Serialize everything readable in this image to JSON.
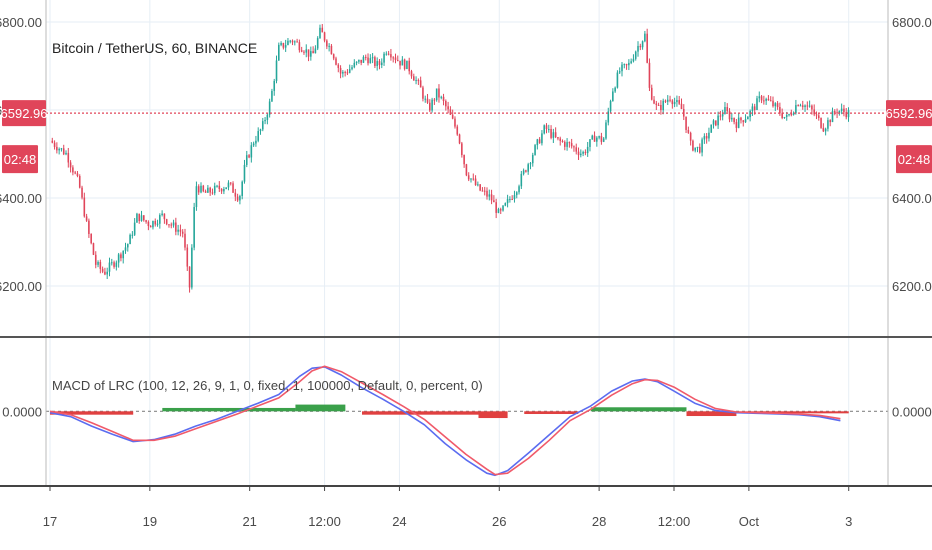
{
  "chart_data": [
    {
      "type": "candlestick",
      "title": "Bitcoin / TetherUS, 60, BINANCE",
      "ylim": [
        6100,
        6850
      ],
      "y_ticks": [
        "6800.00",
        "6600.00",
        "6400.00",
        "6200.00"
      ],
      "y_tick_values": [
        6800,
        6600,
        6400,
        6200
      ],
      "last_price": 6592.96,
      "last_price_label": "6592.96",
      "countdown": "02:48",
      "grid": true,
      "colors": {
        "up": "#26a69a",
        "down": "#e0455a",
        "price_line": "#e0455a",
        "grid": "#e6eef5"
      },
      "x_tick_labels": [
        "17",
        "19",
        "21",
        "12:00",
        "24",
        "26",
        "28",
        "12:00",
        "Oct",
        "3"
      ],
      "x_tick_positions": [
        0,
        48,
        96,
        132,
        168,
        216,
        264,
        300,
        336,
        384
      ],
      "x_range": [
        0,
        400
      ],
      "close_path": [
        [
          0,
          6530
        ],
        [
          8,
          6500
        ],
        [
          14,
          6430
        ],
        [
          18,
          6330
        ],
        [
          22,
          6250
        ],
        [
          26,
          6230
        ],
        [
          32,
          6260
        ],
        [
          38,
          6300
        ],
        [
          42,
          6360
        ],
        [
          48,
          6340
        ],
        [
          54,
          6360
        ],
        [
          58,
          6340
        ],
        [
          64,
          6320
        ],
        [
          67,
          6190
        ],
        [
          70,
          6430
        ],
        [
          74,
          6410
        ],
        [
          80,
          6420
        ],
        [
          86,
          6430
        ],
        [
          91,
          6400
        ],
        [
          94,
          6480
        ],
        [
          98,
          6530
        ],
        [
          102,
          6560
        ],
        [
          106,
          6620
        ],
        [
          110,
          6740
        ],
        [
          116,
          6760
        ],
        [
          122,
          6740
        ],
        [
          126,
          6720
        ],
        [
          130,
          6780
        ],
        [
          136,
          6730
        ],
        [
          140,
          6680
        ],
        [
          146,
          6700
        ],
        [
          152,
          6720
        ],
        [
          158,
          6700
        ],
        [
          162,
          6740
        ],
        [
          168,
          6710
        ],
        [
          172,
          6700
        ],
        [
          178,
          6650
        ],
        [
          182,
          6600
        ],
        [
          186,
          6640
        ],
        [
          190,
          6610
        ],
        [
          196,
          6550
        ],
        [
          200,
          6460
        ],
        [
          206,
          6420
        ],
        [
          212,
          6400
        ],
        [
          216,
          6360
        ],
        [
          220,
          6390
        ],
        [
          224,
          6420
        ],
        [
          228,
          6460
        ],
        [
          234,
          6520
        ],
        [
          238,
          6560
        ],
        [
          244,
          6530
        ],
        [
          250,
          6520
        ],
        [
          256,
          6500
        ],
        [
          262,
          6540
        ],
        [
          266,
          6530
        ],
        [
          270,
          6640
        ],
        [
          274,
          6690
        ],
        [
          278,
          6700
        ],
        [
          282,
          6740
        ],
        [
          286,
          6770
        ],
        [
          288,
          6650
        ],
        [
          292,
          6600
        ],
        [
          298,
          6630
        ],
        [
          304,
          6600
        ],
        [
          308,
          6520
        ],
        [
          312,
          6510
        ],
        [
          318,
          6560
        ],
        [
          324,
          6600
        ],
        [
          330,
          6570
        ],
        [
          336,
          6590
        ],
        [
          342,
          6630
        ],
        [
          348,
          6610
        ],
        [
          354,
          6580
        ],
        [
          360,
          6620
        ],
        [
          366,
          6600
        ],
        [
          372,
          6560
        ],
        [
          378,
          6600
        ],
        [
          384,
          6593
        ]
      ]
    },
    {
      "type": "line",
      "title": "MACD of LRC (100, 12, 26, 9, 1, 0, fixed, 1, 100000, Default, 0, percent, 0)",
      "y_ticks": [
        "0.0000"
      ],
      "y_tick_values": [
        0
      ],
      "ylim": [
        -1.05,
        1.0
      ],
      "colors": {
        "macd": "#5b6cf0",
        "signal": "#f05a6a",
        "hist_pos": "#3aa04a",
        "hist_neg": "#e04040",
        "zero": "#888888"
      },
      "series": [
        {
          "x": [
            0,
            10,
            20,
            30,
            40,
            50,
            60,
            70,
            80,
            90,
            100,
            110,
            120,
            126,
            132,
            140,
            150,
            160,
            170,
            180,
            190,
            200,
            210,
            214,
            220,
            230,
            240,
            250,
            260,
            270,
            280,
            286,
            292,
            300,
            310,
            320,
            330,
            340,
            350,
            360,
            370,
            380
          ],
          "values": [
            -0.02,
            -0.08,
            -0.22,
            -0.34,
            -0.45,
            -0.42,
            -0.34,
            -0.22,
            -0.12,
            0.0,
            0.12,
            0.25,
            0.52,
            0.64,
            0.66,
            0.54,
            0.35,
            0.18,
            0.0,
            -0.2,
            -0.48,
            -0.72,
            -0.92,
            -0.95,
            -0.88,
            -0.62,
            -0.35,
            -0.08,
            0.08,
            0.3,
            0.45,
            0.48,
            0.44,
            0.3,
            0.12,
            0.01,
            -0.02,
            -0.03,
            -0.04,
            -0.05,
            -0.08,
            -0.14
          ]
        },
        {
          "x": [
            0,
            10,
            20,
            30,
            40,
            50,
            60,
            70,
            80,
            90,
            100,
            110,
            120,
            126,
            132,
            140,
            150,
            160,
            170,
            180,
            190,
            200,
            210,
            214,
            220,
            230,
            240,
            250,
            260,
            270,
            280,
            286,
            292,
            300,
            310,
            320,
            330,
            340,
            350,
            360,
            370,
            380
          ],
          "values": [
            0.0,
            -0.05,
            -0.17,
            -0.3,
            -0.43,
            -0.43,
            -0.37,
            -0.26,
            -0.15,
            -0.04,
            0.08,
            0.2,
            0.44,
            0.6,
            0.67,
            0.59,
            0.42,
            0.25,
            0.07,
            -0.12,
            -0.38,
            -0.64,
            -0.86,
            -0.94,
            -0.92,
            -0.7,
            -0.43,
            -0.14,
            0.03,
            0.24,
            0.41,
            0.47,
            0.46,
            0.36,
            0.18,
            0.04,
            -0.01,
            -0.02,
            -0.03,
            -0.04,
            -0.06,
            -0.11
          ]
        }
      ],
      "histogram": [
        {
          "x": [
            0,
            40
          ],
          "value": -0.05
        },
        {
          "x": [
            54,
            118
          ],
          "value": 0.05
        },
        {
          "x": [
            118,
            142
          ],
          "value": 0.1
        },
        {
          "x": [
            150,
            206
          ],
          "value": -0.05
        },
        {
          "x": [
            206,
            220
          ],
          "value": -0.1
        },
        {
          "x": [
            228,
            254
          ],
          "value": -0.04
        },
        {
          "x": [
            260,
            306
          ],
          "value": 0.06
        },
        {
          "x": [
            306,
            330
          ],
          "value": -0.07
        },
        {
          "x": [
            330,
            384
          ],
          "value": -0.03
        }
      ]
    }
  ]
}
